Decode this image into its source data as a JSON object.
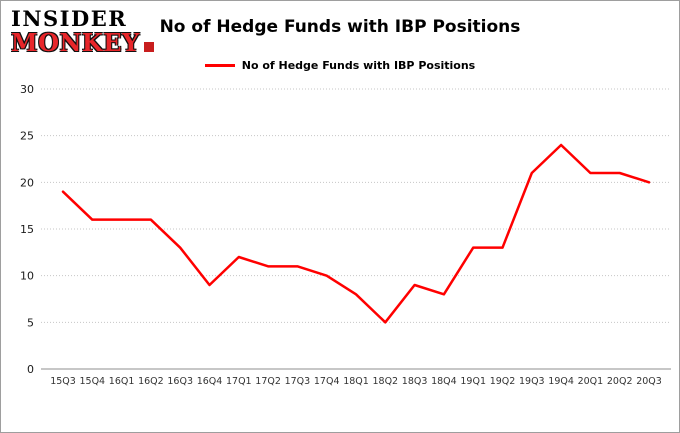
{
  "logo": {
    "line1": "INSIDER",
    "line2": "MONKEY"
  },
  "header": {
    "title": "No of Hedge Funds with IBP Positions"
  },
  "legend": {
    "label": "No of Hedge Funds with IBP Positions",
    "color": "#ff0000"
  },
  "chart_data": {
    "type": "line",
    "title": "No of Hedge Funds with IBP Positions",
    "categories": [
      "15Q3",
      "15Q4",
      "16Q1",
      "16Q2",
      "16Q3",
      "16Q4",
      "17Q1",
      "17Q2",
      "17Q3",
      "17Q4",
      "18Q1",
      "18Q2",
      "18Q3",
      "18Q4",
      "19Q1",
      "19Q2",
      "19Q3",
      "19Q4",
      "20Q1",
      "20Q2",
      "20Q3"
    ],
    "values": [
      19,
      16,
      16,
      16,
      13,
      9,
      12,
      11,
      11,
      10,
      8,
      5,
      9,
      8,
      13,
      13,
      21,
      24,
      21,
      21,
      20
    ],
    "xlabel": "",
    "ylabel": "",
    "ylim": [
      0,
      30
    ],
    "yticks": [
      0,
      5,
      10,
      15,
      20,
      25,
      30
    ],
    "grid": true,
    "legend_position": "top",
    "line_color": "#ff0000"
  }
}
